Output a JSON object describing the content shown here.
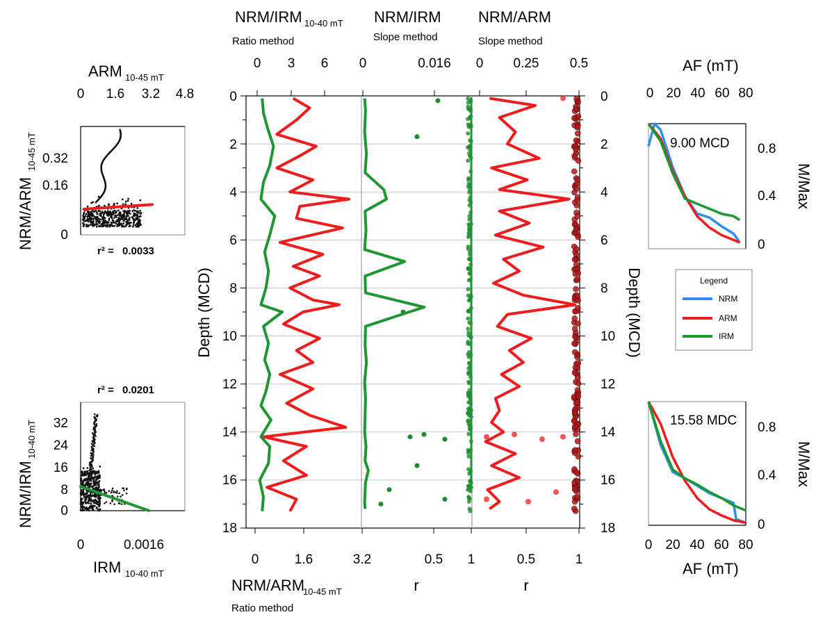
{
  "colors": {
    "nrm": "#2b8fef",
    "arm": "#ee1c1c",
    "irm": "#1e9632",
    "grid": "#c8c8c8",
    "arm_points": "#b01818",
    "irm_points": "#1e8a2e"
  },
  "scatter_top": {
    "top_label": "ARM",
    "top_label_sub": "10-45 mT",
    "left_label": "NRM/ARM",
    "left_label_sub": "10-45 mT",
    "x_ticks": [
      "0",
      "1.6",
      "3.2",
      "4.8"
    ],
    "y_ticks": [
      "0",
      "0.16",
      "0.32"
    ],
    "r2_label": "r² = ",
    "r2_value": "0.0033"
  },
  "scatter_bottom": {
    "bottom_label": "IRM",
    "bottom_label_sub": "10-40 mT",
    "left_label": "NRM/IRM",
    "left_label_sub": "10-40 mT",
    "x_ticks": [
      "0",
      "0.0016"
    ],
    "y_ticks": [
      "0",
      "8",
      "16",
      "24",
      "32"
    ],
    "r2_label": "r² = ",
    "r2_value": "0.0201"
  },
  "depth_panel": {
    "left_axis_label": "Depth (MCD)",
    "right_axis_label": "Depth (MCD)",
    "depth_ticks": [
      "0",
      "2",
      "4",
      "6",
      "8",
      "10",
      "12",
      "14",
      "16",
      "18"
    ],
    "col1_top_label": "NRM/IRM",
    "col1_top_sub": "10-40 mT",
    "col1_top_method": "Ratio method",
    "col1_top_ticks": [
      "0",
      "3",
      "6"
    ],
    "col1_bottom_label": "NRM/ARM",
    "col1_bottom_sub": "10-45 mT",
    "col1_bottom_method": "Ratio method",
    "col1_bottom_ticks": [
      "0",
      "1.6",
      "3.2"
    ],
    "col2_top_label": "NRM/IRM",
    "col2_top_method": "Slope method",
    "col2_top_ticks": [
      "0",
      "0.016"
    ],
    "col2_bottom_ticks": [
      "1",
      "0.5",
      "1"
    ],
    "col2_bottom_label": "r",
    "col3_top_label": "NRM/ARM",
    "col3_top_method": "Slope method",
    "col3_top_ticks": [
      "0",
      "0.25",
      "0.5"
    ],
    "col3_bottom_ticks": [
      "0.5",
      "1"
    ],
    "col3_bottom_label": "r"
  },
  "demag_top": {
    "top_label": "AF (mT)",
    "x_ticks": [
      "0",
      "20",
      "40",
      "60",
      "80"
    ],
    "y_ticks": [
      "0",
      "0.4",
      "0.8"
    ],
    "right_label": "M/Max",
    "annotation": "9.00 MCD"
  },
  "demag_bottom": {
    "bottom_label": "AF (mT)",
    "x_ticks": [
      "0",
      "20",
      "40",
      "60",
      "80"
    ],
    "y_ticks": [
      "0",
      "0.4",
      "0.8"
    ],
    "right_label": "M/Max",
    "annotation": "15.58 MDC"
  },
  "legend": {
    "title": "Legend",
    "items": [
      "NRM",
      "ARM",
      "IRM"
    ]
  },
  "chart_data": [
    {
      "type": "scatter",
      "panel": "ARM vs NRM/ARM",
      "xlabel": "ARM 10-45 mT",
      "ylabel": "NRM/ARM 10-45 mT",
      "xlim": [
        0,
        4.8
      ],
      "ylim": [
        0,
        0.4
      ],
      "r2": 0.0033,
      "fit_line": {
        "x": [
          0.15,
          3.3
        ],
        "y": [
          0.095,
          0.112
        ]
      }
    },
    {
      "type": "scatter",
      "panel": "IRM vs NRM/IRM",
      "xlabel": "IRM 10-40 mT",
      "ylabel": "NRM/IRM 10-40 mT",
      "xlim": [
        0,
        0.0029
      ],
      "ylim": [
        0,
        38
      ],
      "r2": 0.0201,
      "fit_line": {
        "x": [
          0,
          0.0019
        ],
        "y": [
          8.5,
          0
        ]
      }
    },
    {
      "type": "line",
      "panel": "Depth profiles",
      "ylabel": "Depth (MCD)",
      "ylim": [
        18,
        0
      ],
      "series": [
        {
          "name": "NRM/IRM 10-40 mT",
          "method": "Ratio method",
          "xlim": [
            0,
            8.3
          ],
          "depth": [
            0.1,
            0.7,
            1.3,
            2.1,
            2.9,
            3.6,
            4.3,
            5.0,
            5.8,
            6.5,
            7.3,
            8.0,
            8.7,
            9.0,
            9.6,
            10.3,
            11.0,
            11.6,
            12.3,
            12.9,
            13.5,
            14.2,
            14.6,
            15.3,
            16.0,
            16.7,
            17.3
          ],
          "values": [
            0.4,
            0.5,
            0.8,
            1.3,
            1.0,
            0.5,
            0.3,
            1.4,
            1.0,
            0.6,
            0.9,
            0.7,
            0.3,
            2.0,
            0.5,
            0.9,
            0.6,
            1.0,
            0.7,
            0.3,
            1.1,
            0.3,
            1.0,
            0.9,
            0.2,
            0.5,
            0.4
          ]
        },
        {
          "name": "NRM/ARM 10-45 mT",
          "method": "Ratio method",
          "xlim": [
            0,
            3.2
          ],
          "depth": [
            0.1,
            0.5,
            1.0,
            1.6,
            2.1,
            2.5,
            3.0,
            3.5,
            4.0,
            4.3,
            4.6,
            5.1,
            5.5,
            6.1,
            6.6,
            7.1,
            7.5,
            8.0,
            8.5,
            8.7,
            9.0,
            9.5,
            10.1,
            10.6,
            11.1,
            11.6,
            12.2,
            12.8,
            13.3,
            13.8,
            14.2,
            14.6,
            15.2,
            15.8,
            16.3,
            16.8,
            17.3
          ],
          "values": [
            1.1,
            1.6,
            1.2,
            0.6,
            1.8,
            1.3,
            0.6,
            1.7,
            1.0,
            2.8,
            1.3,
            1.2,
            2.6,
            0.7,
            2.0,
            1.1,
            1.9,
            1.0,
            1.7,
            2.5,
            1.4,
            0.8,
            1.9,
            1.2,
            1.7,
            0.7,
            1.7,
            0.9,
            1.6,
            2.7,
            0.2,
            1.5,
            0.8,
            1.5,
            0.3,
            1.2,
            1.0
          ]
        },
        {
          "name": "NRM/IRM",
          "method": "Slope method",
          "xlim": [
            0,
            0.024
          ],
          "depth": [
            0.1,
            0.6,
            1.5,
            2.4,
            3.2,
            3.9,
            4.3,
            4.8,
            5.6,
            6.4,
            6.9,
            7.5,
            8.2,
            8.8,
            9.0,
            9.6,
            10.4,
            11.1,
            11.9,
            12.6,
            13.3,
            14.0,
            14.6,
            15.2,
            15.6,
            16.1,
            16.9,
            17.2
          ],
          "values": [
            0.0004,
            0.0006,
            0.0004,
            0.0008,
            0.0005,
            0.0046,
            0.0052,
            0.0005,
            0.0007,
            0.0004,
            0.0092,
            0.0005,
            0.0006,
            0.0135,
            0.0102,
            0.0006,
            0.0005,
            0.0008,
            0.0004,
            0.0006,
            0.0005,
            0.0004,
            0.0007,
            0.0005,
            0.0012,
            0.0006,
            0.0004,
            0.0005
          ]
        },
        {
          "name": "NRM/ARM",
          "method": "Slope method",
          "xlim": [
            0,
            0.5
          ],
          "depth": [
            0.1,
            0.4,
            0.9,
            1.5,
            2.0,
            2.6,
            3.0,
            3.5,
            3.9,
            4.3,
            4.8,
            5.3,
            5.8,
            6.3,
            6.8,
            7.3,
            7.8,
            8.3,
            8.7,
            9.1,
            9.6,
            10.1,
            10.6,
            11.1,
            11.6,
            12.1,
            12.6,
            13.1,
            13.6,
            14.0,
            14.4,
            14.9,
            15.4,
            15.9,
            16.4,
            16.9,
            17.2
          ],
          "values": [
            0.05,
            0.28,
            0.1,
            0.18,
            0.14,
            0.3,
            0.06,
            0.24,
            0.1,
            0.45,
            0.1,
            0.25,
            0.08,
            0.32,
            0.12,
            0.2,
            0.07,
            0.22,
            0.48,
            0.14,
            0.09,
            0.26,
            0.15,
            0.22,
            0.11,
            0.2,
            0.08,
            0.1,
            0.06,
            0.12,
            0.03,
            0.18,
            0.06,
            0.2,
            0.04,
            0.1,
            0.05
          ]
        }
      ],
      "correlation_r": {
        "xlim": [
          1,
          0
        ],
        "note": "r values plotted as points near 1 in the two slope-method columns"
      }
    },
    {
      "type": "line",
      "panel": "9.00 MCD demagnetization",
      "xlabel": "AF (mT)",
      "ylabel": "M/Max",
      "xlim": [
        0,
        80
      ],
      "ylim": [
        0,
        1.0
      ],
      "series": [
        {
          "name": "NRM",
          "x": [
            0,
            5,
            10,
            20,
            30,
            40,
            50,
            60,
            70,
            75
          ],
          "y": [
            0.82,
            1.0,
            0.95,
            0.65,
            0.42,
            0.28,
            0.25,
            0.18,
            0.12,
            0.05
          ]
        },
        {
          "name": "ARM",
          "x": [
            0,
            10,
            20,
            30,
            40,
            50,
            60,
            70,
            75
          ],
          "y": [
            1.0,
            0.88,
            0.62,
            0.42,
            0.26,
            0.17,
            0.11,
            0.07,
            0.05
          ]
        },
        {
          "name": "IRM",
          "x": [
            0,
            10,
            20,
            30,
            40,
            50,
            60,
            70,
            75
          ],
          "y": [
            1.0,
            0.86,
            0.6,
            0.4,
            0.36,
            0.32,
            0.28,
            0.26,
            0.23
          ]
        }
      ]
    },
    {
      "type": "line",
      "panel": "15.58 MDC demagnetization",
      "xlabel": "AF (mT)",
      "ylabel": "M/Max",
      "xlim": [
        0,
        80
      ],
      "ylim": [
        0,
        1.0
      ],
      "series": [
        {
          "name": "NRM",
          "x": [
            0,
            10,
            20,
            30,
            40,
            50,
            60,
            70,
            72,
            80
          ],
          "y": [
            1.0,
            0.65,
            0.43,
            0.38,
            0.32,
            0.26,
            0.22,
            0.18,
            0.05,
            0.02
          ]
        },
        {
          "name": "ARM",
          "x": [
            0,
            10,
            20,
            30,
            40,
            50,
            60,
            70,
            80
          ],
          "y": [
            1.0,
            0.82,
            0.55,
            0.36,
            0.22,
            0.13,
            0.08,
            0.04,
            0.02
          ]
        },
        {
          "name": "IRM",
          "x": [
            0,
            10,
            20,
            30,
            40,
            50,
            60,
            70,
            80
          ],
          "y": [
            1.0,
            0.68,
            0.45,
            0.38,
            0.33,
            0.27,
            0.22,
            0.16,
            0.12
          ]
        }
      ]
    }
  ]
}
